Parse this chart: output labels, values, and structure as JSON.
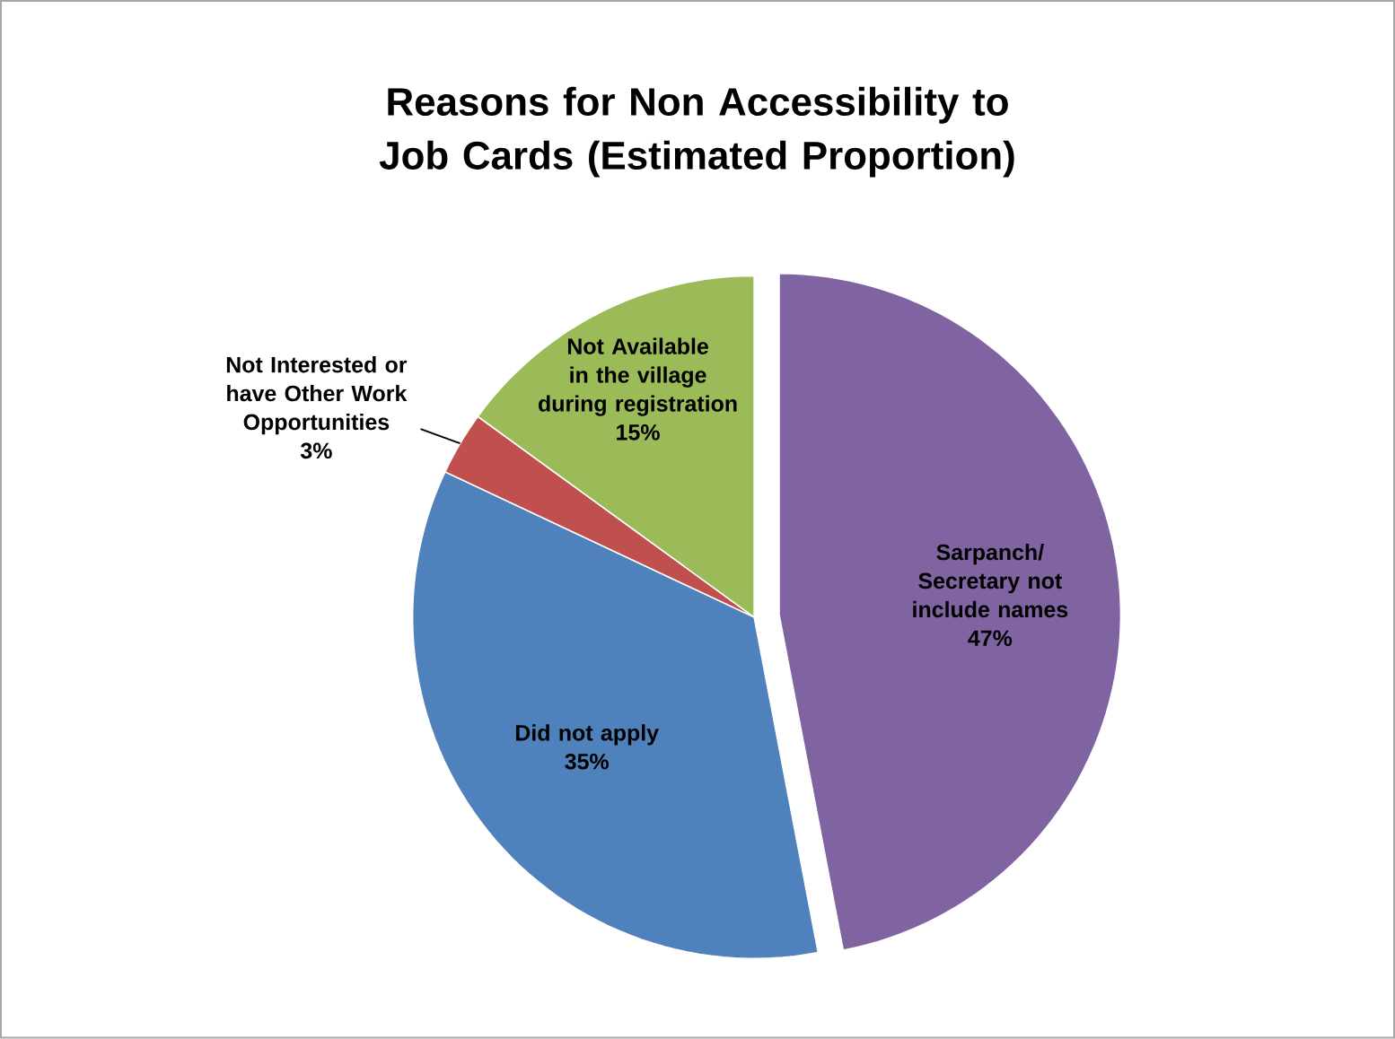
{
  "chart_data": {
    "type": "pie",
    "title": "Reasons for Non Accessibility to Job Cards (Estimated Proportion)",
    "categories": [
      "Sarpanch/ Secretary not include names",
      "Did not apply",
      "Not Interested or have Other Work Opportunities",
      "Not Available in the village during registration"
    ],
    "values": [
      47,
      35,
      3,
      15
    ],
    "value_labels": [
      "47%",
      "35%",
      "3%",
      "15%"
    ],
    "data_labels": true,
    "colors": [
      "#8064a2",
      "#4f81bd",
      "#c0504d",
      "#9bbb59"
    ]
  }
}
